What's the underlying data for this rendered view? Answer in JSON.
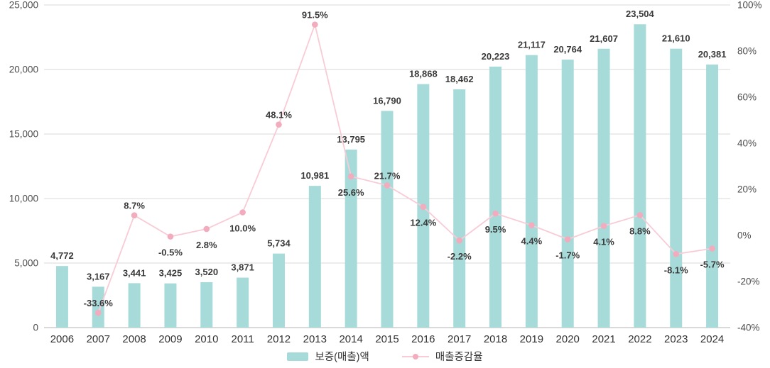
{
  "legend": {
    "items": [
      {
        "label": "보증(매출)액",
        "type": "bar",
        "color": "#a6dbda"
      },
      {
        "label": "매출증감율",
        "type": "line",
        "color": "#f8cbd5",
        "marker_color": "#f3abbe"
      }
    ]
  },
  "chart_data": {
    "type": "bar+line",
    "title": "",
    "categories": [
      "2006",
      "2007",
      "2008",
      "2009",
      "2010",
      "2011",
      "2012",
      "2013",
      "2014",
      "2015",
      "2016",
      "2017",
      "2018",
      "2019",
      "2020",
      "2021",
      "2022",
      "2023",
      "2024"
    ],
    "series": [
      {
        "name": "보증(매출)액",
        "type": "bar",
        "color": "#a6dbda",
        "values": [
          4772,
          3167,
          3441,
          3425,
          3520,
          3871,
          5734,
          10981,
          13795,
          16790,
          18868,
          18462,
          20223,
          21117,
          20764,
          21607,
          23504,
          21610,
          20381
        ],
        "labels": [
          "4,772",
          "3,167",
          "3,441",
          "3,425",
          "3,520",
          "3,871",
          "5,734",
          "10,981",
          "13,795",
          "16,790",
          "18,868",
          "18,462",
          "20,223",
          "21,117",
          "20,764",
          "21,607",
          "23,504",
          "21,610",
          "20,381"
        ]
      },
      {
        "name": "매출증감율",
        "type": "line",
        "color": "#f8cbd5",
        "marker_color": "#f3abbe",
        "values": [
          null,
          -33.6,
          8.7,
          -0.5,
          2.8,
          10.0,
          48.1,
          91.5,
          25.6,
          21.7,
          12.4,
          -2.2,
          9.5,
          4.4,
          -1.7,
          4.1,
          8.8,
          -8.1,
          -5.7
        ],
        "labels": [
          null,
          "-33.6%",
          "8.7%",
          "-0.5%",
          "2.8%",
          "10.0%",
          "48.1%",
          "91.5%",
          "25.6%",
          "21.7%",
          "12.4%",
          "-2.2%",
          "9.5%",
          "4.4%",
          "-1.7%",
          "4.1%",
          "8.8%",
          "-8.1%",
          "-5.7%"
        ],
        "label_side": [
          null,
          "above",
          "above",
          "below",
          "below",
          "below",
          "above",
          "above",
          "below",
          "above",
          "below",
          "below",
          "below",
          "below",
          "below",
          "below",
          "below",
          "below",
          "below"
        ]
      }
    ],
    "left_axis": {
      "min": 0,
      "max": 25000,
      "ticks": [
        "0",
        "5,000",
        "10,000",
        "15,000",
        "20,000",
        "25,000"
      ]
    },
    "right_axis": {
      "min": -40,
      "max": 100,
      "ticks": [
        "-40%",
        "-20%",
        "0%",
        "20%",
        "40%",
        "60%",
        "80%",
        "100%"
      ]
    },
    "grid": true,
    "legend_position": "bottom"
  }
}
